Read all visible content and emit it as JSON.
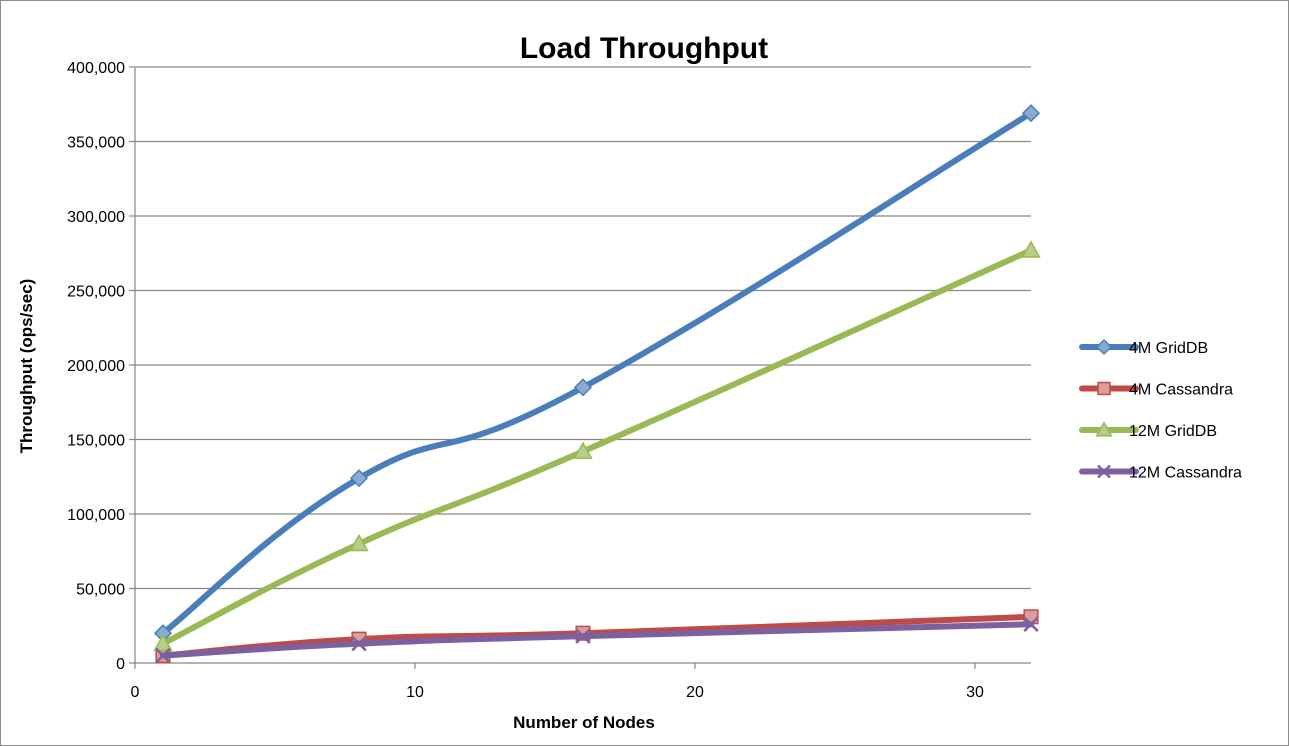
{
  "chart_data": {
    "type": "line",
    "title": "Load Throughput",
    "xlabel": "Number of Nodes",
    "ylabel": "Throughput (ops/sec)",
    "xlim": [
      0,
      32
    ],
    "ylim": [
      0,
      400000
    ],
    "x_ticks": [
      0,
      10,
      20,
      30
    ],
    "x_tick_labels": [
      "0",
      "10",
      "20",
      "30"
    ],
    "y_ticks": [
      0,
      50000,
      100000,
      150000,
      200000,
      250000,
      300000,
      350000,
      400000
    ],
    "y_tick_labels": [
      "0",
      "50,000",
      "100,000",
      "150,000",
      "200,000",
      "250,000",
      "300,000",
      "350,000",
      "400,000"
    ],
    "grid": "horizontal",
    "legend_position": "right",
    "series": [
      {
        "name": "4M GridDB",
        "color": "#4a7ebb",
        "marker": "diamond",
        "x": [
          1,
          8,
          16,
          32
        ],
        "y": [
          20000,
          124000,
          185000,
          369000
        ]
      },
      {
        "name": "4M Cassandra",
        "color": "#be4b48",
        "marker": "square",
        "x": [
          1,
          8,
          16,
          32
        ],
        "y": [
          5000,
          16000,
          20000,
          31000
        ]
      },
      {
        "name": "12M GridDB",
        "color": "#98b954",
        "marker": "triangle",
        "x": [
          1,
          8,
          16,
          32
        ],
        "y": [
          13000,
          80000,
          142000,
          277000
        ]
      },
      {
        "name": "12M Cassandra",
        "color": "#7d60a0",
        "marker": "x",
        "x": [
          1,
          8,
          16,
          32
        ],
        "y": [
          5000,
          13000,
          18000,
          26000
        ]
      }
    ]
  }
}
